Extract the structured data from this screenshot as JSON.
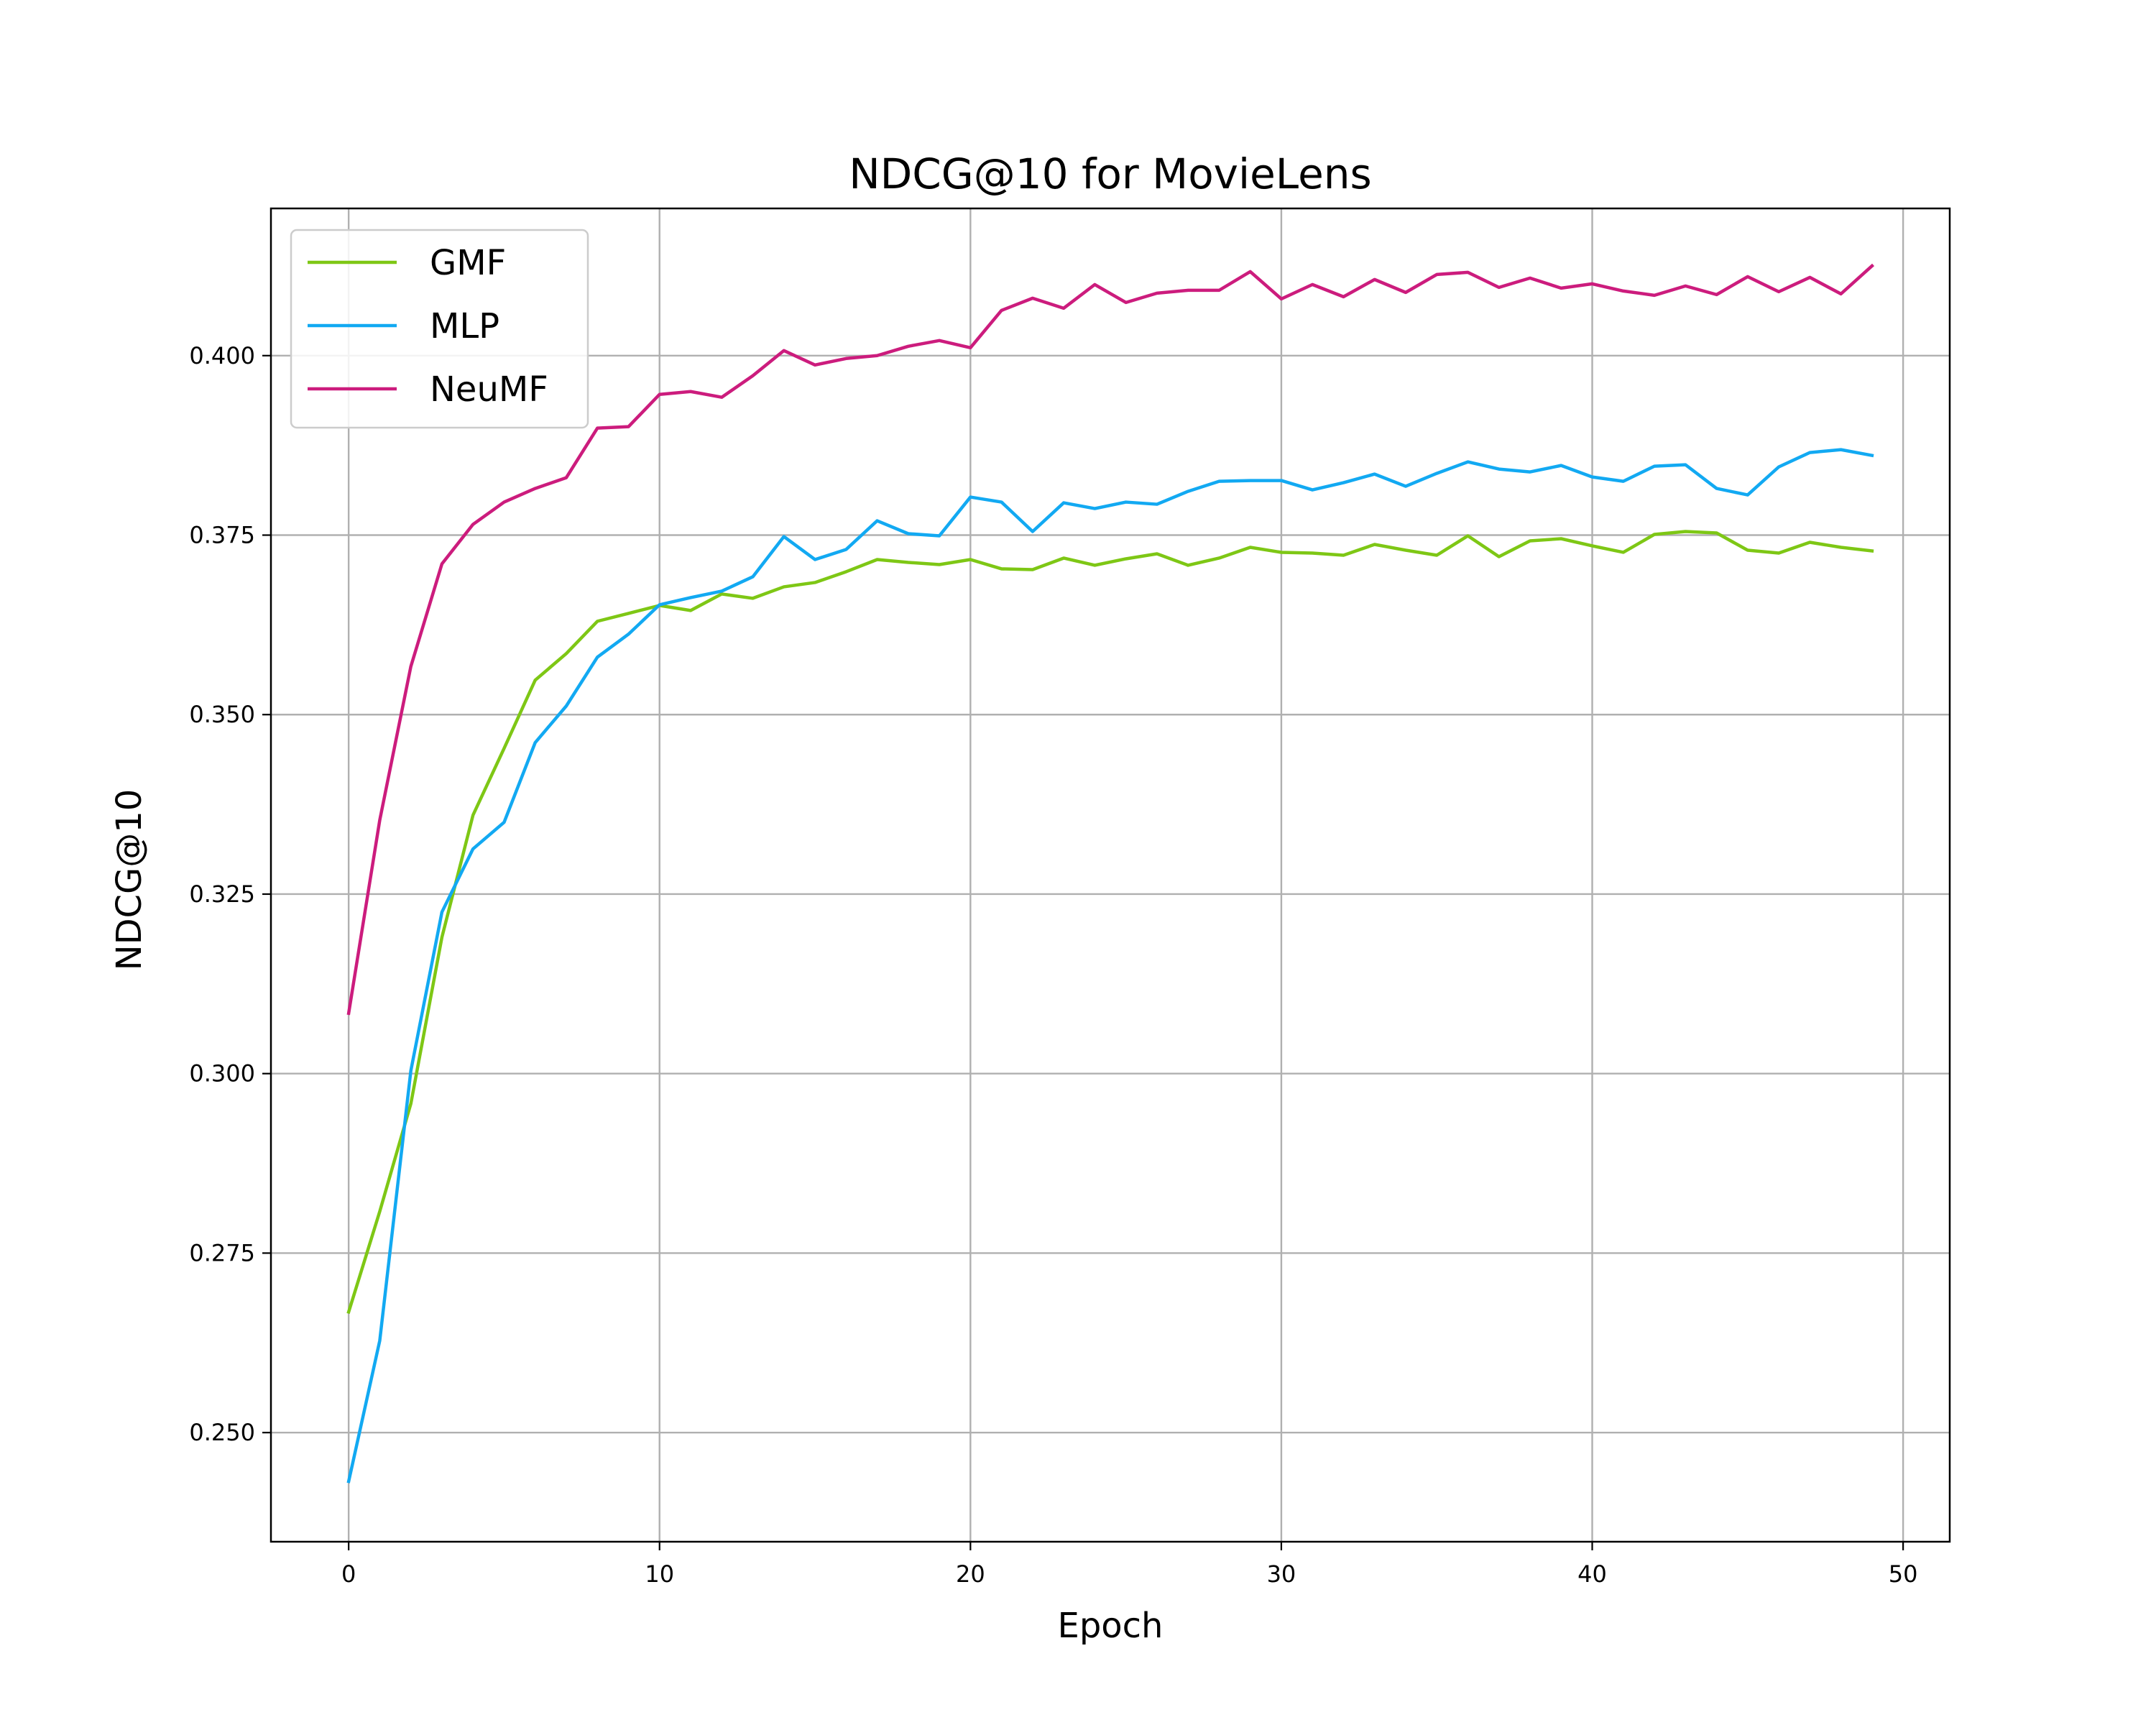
{
  "chart_data": {
    "type": "line",
    "title": "NDCG@10 for MovieLens",
    "xlabel": "Epoch",
    "ylabel": "NDCG@10",
    "xlim": [
      -2.5,
      51.5
    ],
    "ylim": [
      0.2348,
      0.4205
    ],
    "xticks": [
      0,
      10,
      20,
      30,
      40,
      50
    ],
    "yticks": [
      0.25,
      0.275,
      0.3,
      0.325,
      0.35,
      0.375,
      0.4
    ],
    "xtick_labels": [
      "0",
      "10",
      "20",
      "30",
      "40",
      "50"
    ],
    "ytick_labels": [
      "0.250",
      "0.275",
      "0.300",
      "0.325",
      "0.350",
      "0.375",
      "0.400"
    ],
    "grid": true,
    "legend_position": "upper-left",
    "x": [
      0,
      1,
      2,
      3,
      4,
      5,
      6,
      7,
      8,
      9,
      10,
      11,
      12,
      13,
      14,
      15,
      16,
      17,
      18,
      19,
      20,
      21,
      22,
      23,
      24,
      25,
      26,
      27,
      28,
      29,
      30,
      31,
      32,
      33,
      34,
      35,
      36,
      37,
      38,
      39,
      40,
      41,
      42,
      43,
      44,
      45,
      46,
      47,
      48,
      49
    ],
    "series": [
      {
        "name": "GMF",
        "color": "#7ec715",
        "values": [
          0.2668,
          0.2808,
          0.2958,
          0.319,
          0.336,
          0.3453,
          0.3548,
          0.3585,
          0.363,
          0.3641,
          0.3652,
          0.3645,
          0.3668,
          0.3662,
          0.3678,
          0.3684,
          0.3699,
          0.3716,
          0.3712,
          0.3709,
          0.3716,
          0.3703,
          0.3702,
          0.3718,
          0.3708,
          0.3717,
          0.3724,
          0.3708,
          0.3718,
          0.3733,
          0.3726,
          0.3725,
          0.3722,
          0.3737,
          0.3729,
          0.3722,
          0.3749,
          0.372,
          0.3742,
          0.3745,
          0.3735,
          0.3726,
          0.3751,
          0.3755,
          0.3753,
          0.3729,
          0.3725,
          0.374,
          0.3733,
          0.3728
        ]
      },
      {
        "name": "MLP",
        "color": "#12a9f2",
        "values": [
          0.2432,
          0.2628,
          0.3004,
          0.3225,
          0.3313,
          0.335,
          0.3461,
          0.3512,
          0.358,
          0.3612,
          0.3653,
          0.3663,
          0.3672,
          0.3692,
          0.3748,
          0.3716,
          0.373,
          0.377,
          0.3752,
          0.3749,
          0.3803,
          0.3796,
          0.3755,
          0.3795,
          0.3787,
          0.3796,
          0.3793,
          0.3811,
          0.3825,
          0.3826,
          0.3826,
          0.3813,
          0.3823,
          0.3835,
          0.3818,
          0.3836,
          0.3852,
          0.3842,
          0.3838,
          0.3847,
          0.3831,
          0.3825,
          0.3846,
          0.3848,
          0.3815,
          0.3806,
          0.3845,
          0.3865,
          0.3869,
          0.3861
        ]
      },
      {
        "name": "NeuMF",
        "color": "#cc1c7d",
        "values": [
          0.3084,
          0.3353,
          0.3567,
          0.371,
          0.3765,
          0.3796,
          0.3815,
          0.383,
          0.3899,
          0.3901,
          0.3946,
          0.395,
          0.3942,
          0.3972,
          0.4007,
          0.3987,
          0.3996,
          0.4,
          0.4013,
          0.4021,
          0.4011,
          0.4063,
          0.408,
          0.4066,
          0.4099,
          0.4074,
          0.4087,
          0.4091,
          0.4091,
          0.4117,
          0.4079,
          0.4099,
          0.4082,
          0.4106,
          0.4088,
          0.4113,
          0.4116,
          0.4095,
          0.4108,
          0.4094,
          0.41,
          0.409,
          0.4084,
          0.4097,
          0.4085,
          0.411,
          0.4089,
          0.4109,
          0.4086,
          0.4125
        ]
      }
    ]
  }
}
